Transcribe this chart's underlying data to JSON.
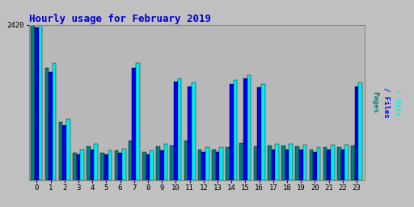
{
  "title": "Hourly usage for February 2019",
  "hours": [
    0,
    1,
    2,
    3,
    4,
    5,
    6,
    7,
    8,
    9,
    10,
    11,
    12,
    13,
    14,
    15,
    16,
    17,
    18,
    19,
    20,
    21,
    22,
    23
  ],
  "pages": [
    2420,
    1750,
    900,
    430,
    520,
    430,
    460,
    620,
    440,
    520,
    540,
    620,
    480,
    480,
    510,
    570,
    530,
    540,
    540,
    530,
    480,
    510,
    510,
    540
  ],
  "files": [
    2380,
    1690,
    850,
    400,
    480,
    400,
    420,
    1750,
    400,
    460,
    1540,
    1460,
    440,
    440,
    1500,
    1580,
    1440,
    480,
    480,
    470,
    440,
    470,
    470,
    1460
  ],
  "hits": [
    2420,
    1820,
    950,
    470,
    560,
    460,
    490,
    1820,
    460,
    560,
    1580,
    1520,
    510,
    510,
    1560,
    1640,
    1500,
    560,
    560,
    550,
    510,
    550,
    550,
    1520
  ],
  "pages_color": "#008080",
  "files_color": "#0000EE",
  "hits_color": "#00EEEE",
  "bg_color": "#C0C0C0",
  "plot_bg_color": "#B8B8B8",
  "title_color": "#0000CC",
  "ylabel_pages_color": "#008080",
  "ylabel_files_color": "#0000EE",
  "ylabel_hits_color": "#00EEEE",
  "ymax": 2420,
  "ymin": 0,
  "bar_width": 0.27
}
